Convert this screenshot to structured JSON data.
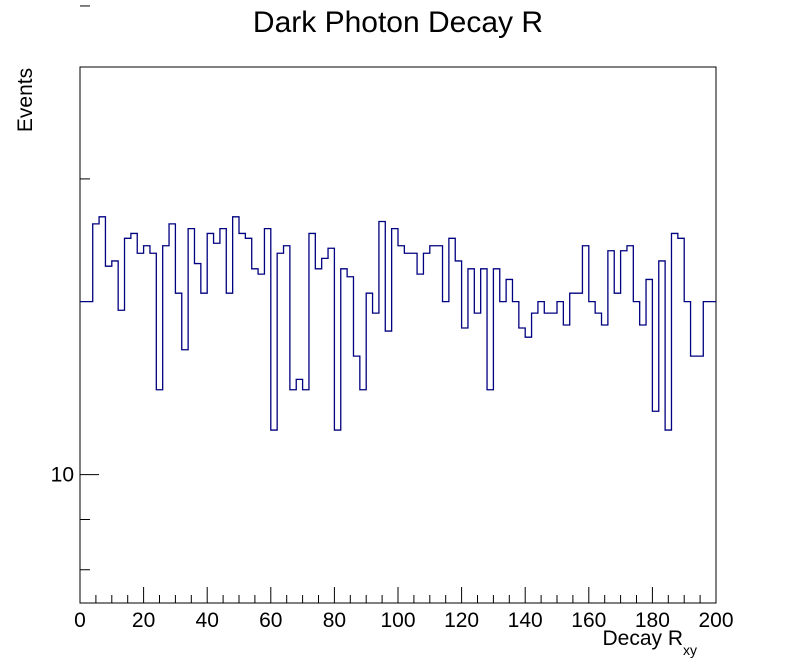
{
  "chart_data": {
    "type": "histogram",
    "title": "Dark Photon Decay R",
    "xlabel": "Decay R",
    "xlabel_subscript": "xy",
    "ylabel": "Events",
    "xlim": [
      0,
      200
    ],
    "ylim": [
      7.4,
      26
    ],
    "y_scale": "log",
    "x_tick_labels": [
      "0",
      "20",
      "40",
      "60",
      "80",
      "100",
      "120",
      "140",
      "160",
      "180",
      "200"
    ],
    "x_tick_values": [
      0,
      20,
      40,
      60,
      80,
      100,
      120,
      140,
      160,
      180,
      200
    ],
    "y_tick_labels": [
      "10"
    ],
    "y_tick_values": [
      10
    ],
    "y_minor_ticks": [
      8,
      9,
      20,
      30
    ],
    "grid": false,
    "line_color": "#000080",
    "bin_width": 2,
    "bin_edges_start": 0,
    "values": [
      15,
      15,
      18,
      18.3,
      16.3,
      16.5,
      14.7,
      17.4,
      17.6,
      16.8,
      17.1,
      16.8,
      12.2,
      17.1,
      18,
      15.3,
      13.4,
      17.8,
      16.4,
      15.3,
      17.6,
      17.2,
      17.8,
      15.3,
      18.3,
      17.6,
      17.4,
      16.2,
      16,
      17.8,
      11.1,
      16.8,
      17.1,
      12.2,
      12.5,
      12.2,
      17.6,
      16.2,
      16.6,
      17,
      11.1,
      16.2,
      15.9,
      13.2,
      12.2,
      15.3,
      14.6,
      18.1,
      14,
      17.8,
      17.1,
      16.8,
      16.8,
      16,
      16.8,
      17.1,
      17.1,
      15,
      17.4,
      16.5,
      14.1,
      16.2,
      14.6,
      16.2,
      12.2,
      16.2,
      15,
      15.8,
      15,
      14.1,
      13.8,
      14.6,
      15,
      14.6,
      14.6,
      15,
      14.2,
      15.3,
      15.3,
      17.1,
      15,
      14.6,
      14.2,
      16.9,
      15.3,
      16.9,
      17.1,
      15,
      14.2,
      15.8,
      11.6,
      16.5,
      11.1,
      17.6,
      17.4,
      15,
      13.2,
      13.2,
      15,
      15
    ]
  }
}
